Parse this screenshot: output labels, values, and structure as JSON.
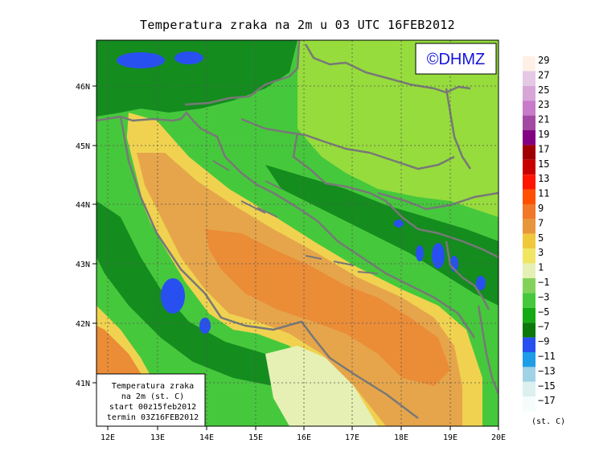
{
  "title": "Temperatura zraka na 2m u 03 UTC 16FEB2012",
  "logo": "©DHMZ",
  "info_box": {
    "line1": "Temperatura zraka",
    "line2": "na 2m (st. C)",
    "line3": "start 00z15feb2012",
    "line4": "termin 03Z16FEB2012"
  },
  "lon_ticks": [
    "12E",
    "13E",
    "14E",
    "15E",
    "16E",
    "17E",
    "18E",
    "19E",
    "20E"
  ],
  "lat_ticks": [
    "46N",
    "45N",
    "44N",
    "43N",
    "42N",
    "41N"
  ],
  "legend": {
    "unit": "(st. C)",
    "labels": [
      "29",
      "27",
      "25",
      "23",
      "21",
      "19",
      "17",
      "15",
      "13",
      "11",
      "9",
      "7",
      "5",
      "3",
      "1",
      "−1",
      "−3",
      "−5",
      "−7",
      "−9",
      "−11",
      "−13",
      "−15",
      "−17"
    ],
    "colors": [
      "#fff0e6",
      "#e4c8e4",
      "#d7a6d7",
      "#c87bc8",
      "#a24aa2",
      "#820082",
      "#a00000",
      "#c80000",
      "#ff1400",
      "#ff5000",
      "#f07828",
      "#e8963c",
      "#f0c83c",
      "#f0e664",
      "#e6f0b4",
      "#82d25a",
      "#46c83c",
      "#14aa14",
      "#0a780a",
      "#2850f0",
      "#1e9ee6",
      "#a0d2e6",
      "#dcf0f0",
      "#f6fcfc"
    ]
  },
  "colors": {
    "sea_warm": "#eb8c37",
    "sea_mild": "#e6a54b",
    "coast_yellow": "#f0d250",
    "pale": "#e6f0b4",
    "land_lightgreen": "#96dc3c",
    "land_green": "#46c83c",
    "land_darkgreen": "#148c1e",
    "cold_blue": "#2850f0",
    "border_gray": "#787878"
  }
}
